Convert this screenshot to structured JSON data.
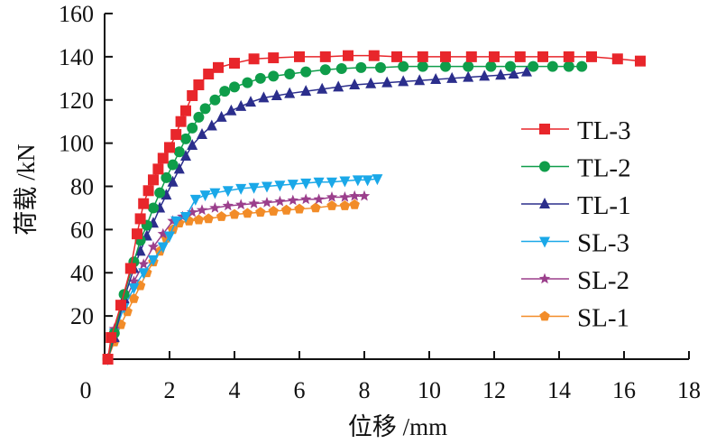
{
  "chart_data": {
    "type": "line",
    "title": "",
    "xlabel": "位移 /mm",
    "ylabel": "荷载 /kN",
    "xlim": [
      0,
      18
    ],
    "ylim": [
      0,
      160
    ],
    "xticks": [
      0,
      2,
      4,
      6,
      8,
      10,
      12,
      14,
      16,
      18
    ],
    "yticks": [
      20,
      40,
      60,
      80,
      100,
      120,
      140,
      160
    ],
    "grid": false,
    "legend_position": "right",
    "series": [
      {
        "name": "TL-3",
        "color": "#e8262b",
        "marker": "square",
        "points": [
          [
            0.1,
            0
          ],
          [
            0.2,
            10
          ],
          [
            0.5,
            25
          ],
          [
            0.8,
            42
          ],
          [
            1.0,
            58
          ],
          [
            1.1,
            65
          ],
          [
            1.2,
            72
          ],
          [
            1.35,
            78
          ],
          [
            1.5,
            83
          ],
          [
            1.65,
            88
          ],
          [
            1.8,
            93
          ],
          [
            2.0,
            98
          ],
          [
            2.2,
            104
          ],
          [
            2.35,
            110
          ],
          [
            2.5,
            115
          ],
          [
            2.7,
            122
          ],
          [
            2.9,
            127
          ],
          [
            3.2,
            132
          ],
          [
            3.5,
            135
          ],
          [
            4.0,
            137
          ],
          [
            4.6,
            139
          ],
          [
            5.2,
            139.5
          ],
          [
            6.0,
            140
          ],
          [
            6.8,
            140
          ],
          [
            7.5,
            140.5
          ],
          [
            8.3,
            140.5
          ],
          [
            9.0,
            140
          ],
          [
            9.8,
            140
          ],
          [
            10.5,
            140
          ],
          [
            11.3,
            140
          ],
          [
            12.0,
            140
          ],
          [
            12.8,
            140
          ],
          [
            13.5,
            140
          ],
          [
            14.3,
            140
          ],
          [
            15.0,
            140
          ],
          [
            15.8,
            139
          ],
          [
            16.5,
            138
          ]
        ]
      },
      {
        "name": "TL-2",
        "color": "#0f9d4a",
        "marker": "circle",
        "points": [
          [
            0.1,
            0
          ],
          [
            0.3,
            12
          ],
          [
            0.6,
            30
          ],
          [
            0.9,
            45
          ],
          [
            1.1,
            55
          ],
          [
            1.3,
            62
          ],
          [
            1.5,
            70
          ],
          [
            1.7,
            77
          ],
          [
            1.9,
            84
          ],
          [
            2.1,
            90
          ],
          [
            2.3,
            96
          ],
          [
            2.5,
            102
          ],
          [
            2.7,
            107
          ],
          [
            2.9,
            112
          ],
          [
            3.1,
            116
          ],
          [
            3.4,
            120
          ],
          [
            3.7,
            124
          ],
          [
            4.0,
            126
          ],
          [
            4.4,
            128
          ],
          [
            4.8,
            130
          ],
          [
            5.2,
            131
          ],
          [
            5.7,
            132
          ],
          [
            6.2,
            133
          ],
          [
            6.8,
            134
          ],
          [
            7.3,
            134.5
          ],
          [
            7.9,
            135
          ],
          [
            8.5,
            135
          ],
          [
            9.2,
            135.5
          ],
          [
            9.8,
            135.5
          ],
          [
            10.5,
            135.5
          ],
          [
            11.2,
            135.5
          ],
          [
            11.9,
            135.5
          ],
          [
            12.5,
            135.5
          ],
          [
            13.2,
            135.5
          ],
          [
            13.8,
            135.5
          ],
          [
            14.3,
            135.5
          ],
          [
            14.7,
            135.5
          ]
        ]
      },
      {
        "name": "TL-1",
        "color": "#2b2e8c",
        "marker": "triangle-up",
        "points": [
          [
            0.1,
            0
          ],
          [
            0.3,
            10
          ],
          [
            0.6,
            28
          ],
          [
            0.9,
            42
          ],
          [
            1.1,
            50
          ],
          [
            1.3,
            57
          ],
          [
            1.5,
            63
          ],
          [
            1.7,
            70
          ],
          [
            1.9,
            76
          ],
          [
            2.1,
            82
          ],
          [
            2.3,
            88
          ],
          [
            2.5,
            94
          ],
          [
            2.7,
            99
          ],
          [
            3.0,
            104
          ],
          [
            3.3,
            108
          ],
          [
            3.6,
            112
          ],
          [
            3.9,
            115
          ],
          [
            4.2,
            117
          ],
          [
            4.5,
            119
          ],
          [
            4.9,
            121
          ],
          [
            5.3,
            122
          ],
          [
            5.7,
            123
          ],
          [
            6.2,
            124
          ],
          [
            6.7,
            125
          ],
          [
            7.2,
            126
          ],
          [
            7.7,
            127
          ],
          [
            8.2,
            127.5
          ],
          [
            8.7,
            128
          ],
          [
            9.2,
            128.5
          ],
          [
            9.7,
            129
          ],
          [
            10.2,
            129.5
          ],
          [
            10.7,
            130
          ],
          [
            11.2,
            130.5
          ],
          [
            11.7,
            131
          ],
          [
            12.2,
            131.5
          ],
          [
            12.6,
            132
          ],
          [
            13.0,
            133
          ]
        ]
      },
      {
        "name": "SL-3",
        "color": "#1aa8e8",
        "marker": "triangle-down",
        "points": [
          [
            0.1,
            0
          ],
          [
            0.3,
            12
          ],
          [
            0.6,
            24
          ],
          [
            0.9,
            33
          ],
          [
            1.2,
            40
          ],
          [
            1.5,
            46
          ],
          [
            1.8,
            52
          ],
          [
            2.0,
            57
          ],
          [
            2.2,
            64
          ],
          [
            2.5,
            66
          ],
          [
            2.8,
            74
          ],
          [
            3.1,
            76
          ],
          [
            3.4,
            77
          ],
          [
            3.8,
            78
          ],
          [
            4.2,
            79
          ],
          [
            4.6,
            79.5
          ],
          [
            5.0,
            80
          ],
          [
            5.4,
            80.5
          ],
          [
            5.8,
            81
          ],
          [
            6.2,
            81.5
          ],
          [
            6.6,
            82
          ],
          [
            7.0,
            82
          ],
          [
            7.4,
            82.5
          ],
          [
            7.8,
            83
          ],
          [
            8.1,
            83
          ],
          [
            8.4,
            83.5
          ]
        ]
      },
      {
        "name": "SL-2",
        "color": "#9b3f8c",
        "marker": "star",
        "points": [
          [
            0.1,
            0
          ],
          [
            0.3,
            14
          ],
          [
            0.6,
            26
          ],
          [
            0.9,
            36
          ],
          [
            1.2,
            44
          ],
          [
            1.5,
            52
          ],
          [
            1.8,
            58
          ],
          [
            2.1,
            64
          ],
          [
            2.4,
            66
          ],
          [
            2.7,
            68
          ],
          [
            3.0,
            69
          ],
          [
            3.4,
            70
          ],
          [
            3.8,
            71
          ],
          [
            4.2,
            71.5
          ],
          [
            4.6,
            72
          ],
          [
            5.0,
            72.5
          ],
          [
            5.4,
            73
          ],
          [
            5.8,
            73.5
          ],
          [
            6.2,
            74
          ],
          [
            6.6,
            74
          ],
          [
            7.0,
            75
          ],
          [
            7.4,
            75
          ],
          [
            7.7,
            75.5
          ],
          [
            8.0,
            75.5
          ]
        ]
      },
      {
        "name": "SL-1",
        "color": "#f28c28",
        "marker": "pentagon",
        "points": [
          [
            0.1,
            0
          ],
          [
            0.3,
            8
          ],
          [
            0.5,
            16
          ],
          [
            0.7,
            22
          ],
          [
            0.9,
            28
          ],
          [
            1.1,
            34
          ],
          [
            1.3,
            40
          ],
          [
            1.5,
            45
          ],
          [
            1.7,
            50
          ],
          [
            1.9,
            56
          ],
          [
            2.1,
            60
          ],
          [
            2.3,
            63
          ],
          [
            2.6,
            64
          ],
          [
            2.9,
            64.5
          ],
          [
            3.2,
            65
          ],
          [
            3.6,
            66
          ],
          [
            4.0,
            67
          ],
          [
            4.4,
            67.5
          ],
          [
            4.8,
            68
          ],
          [
            5.2,
            68.5
          ],
          [
            5.6,
            69
          ],
          [
            6.0,
            69.5
          ],
          [
            6.5,
            70
          ],
          [
            7.0,
            71
          ],
          [
            7.4,
            71
          ],
          [
            7.7,
            71.5
          ]
        ]
      }
    ]
  }
}
